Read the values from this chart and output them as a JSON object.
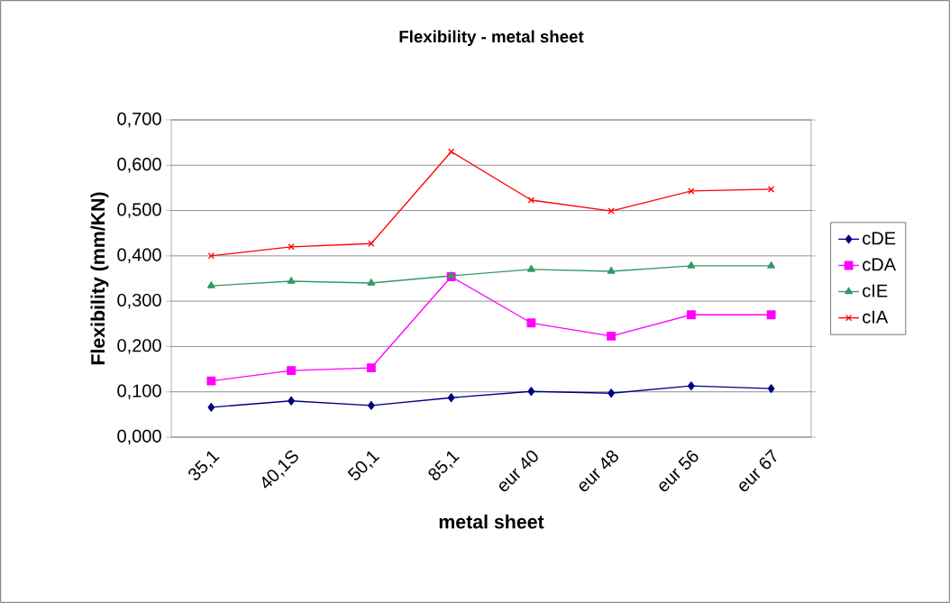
{
  "chart_data": {
    "type": "line",
    "title": "Flexibility - metal sheet",
    "xlabel": "metal sheet",
    "ylabel": "Flexibility (mm/KN)",
    "categories": [
      "35,1",
      "40,1S",
      "50,1",
      "85,1",
      "eur 40",
      "eur 48",
      "eur 56",
      "eur 67"
    ],
    "series": [
      {
        "name": "cDE",
        "color": "#000080",
        "marker": "diamond",
        "values": [
          0.066,
          0.08,
          0.07,
          0.087,
          0.101,
          0.097,
          0.113,
          0.107
        ]
      },
      {
        "name": "cDA",
        "color": "#ff00ff",
        "marker": "square",
        "values": [
          0.124,
          0.147,
          0.153,
          0.354,
          0.252,
          0.223,
          0.27,
          0.27
        ]
      },
      {
        "name": "cIE",
        "color": "#339966",
        "marker": "triangle",
        "values": [
          0.334,
          0.344,
          0.34,
          0.356,
          0.37,
          0.366,
          0.378,
          0.378
        ]
      },
      {
        "name": "cIA",
        "color": "#ff0000",
        "marker": "cross",
        "values": [
          0.4,
          0.42,
          0.427,
          0.63,
          0.523,
          0.499,
          0.543,
          0.547
        ]
      }
    ],
    "ylim": [
      0,
      0.7
    ],
    "yticks": [
      {
        "value": 0,
        "label": "0,000"
      },
      {
        "value": 0.1,
        "label": "0,100"
      },
      {
        "value": 0.2,
        "label": "0,200"
      },
      {
        "value": 0.3,
        "label": "0,300"
      },
      {
        "value": 0.4,
        "label": "0,400"
      },
      {
        "value": 0.5,
        "label": "0,500"
      },
      {
        "value": 0.6,
        "label": "0,600"
      },
      {
        "value": 0.7,
        "label": "0,700"
      }
    ],
    "grid": "y",
    "legend": "right"
  }
}
